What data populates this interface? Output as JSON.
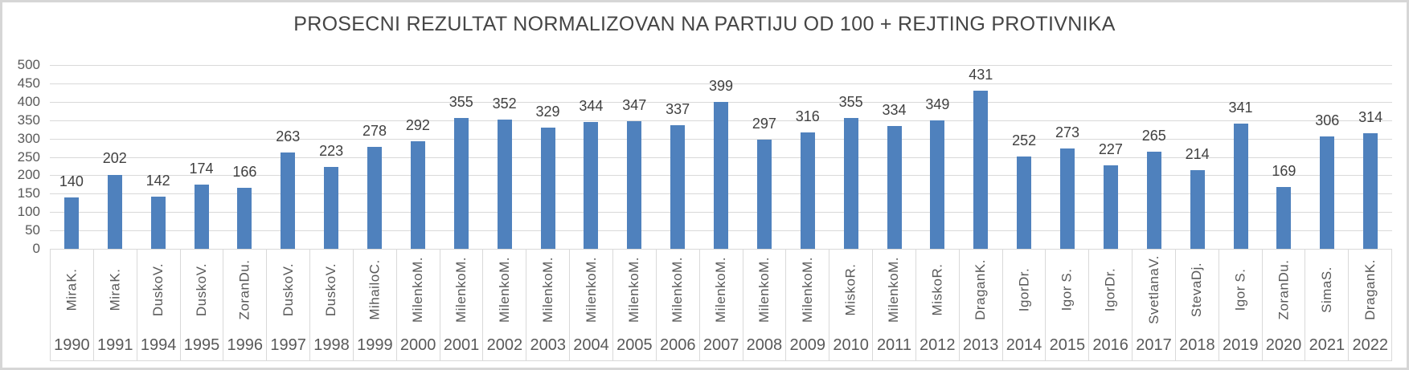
{
  "chart_data": {
    "type": "bar",
    "title": "PROSECNI REZULTAT NORMALIZOVAN NA PARTIJU OD 100 + REJTING PROTIVNIKA",
    "categories_years": [
      "1990",
      "1991",
      "1994",
      "1995",
      "1996",
      "1997",
      "1998",
      "1999",
      "2000",
      "2001",
      "2002",
      "2003",
      "2004",
      "2005",
      "2006",
      "2007",
      "2008",
      "2009",
      "2010",
      "2011",
      "2012",
      "2013",
      "2014",
      "2015",
      "2016",
      "2017",
      "2018",
      "2019",
      "2020",
      "2021",
      "2022"
    ],
    "categories_names": [
      "Mira K.",
      "Mira K.",
      "Dusko V.",
      "Dusko V.",
      "Zoran Du.",
      "Dusko V.",
      "Dusko V.",
      "Mihailo C.",
      "Milenko M.",
      "Milenko M.",
      "Milenko M.",
      "Milenko M.",
      "Milenko M.",
      "Milenko M.",
      "Milenko M.",
      "Milenko M.",
      "Milenko M.",
      "Milenko M.",
      "Misko R.",
      "Milenko M.",
      "Misko R.",
      "Dragan K.",
      "Igor Dr.",
      "Igor S.",
      "Igor Dr.",
      "Svetlana V.",
      "Steva Dj.",
      "Igor S.",
      "Zoran Du.",
      "Sima S.",
      "Dragan K."
    ],
    "values": [
      140,
      202,
      142,
      174,
      166,
      263,
      223,
      278,
      292,
      355,
      352,
      329,
      344,
      347,
      337,
      399,
      297,
      316,
      355,
      334,
      349,
      431,
      252,
      273,
      227,
      265,
      214,
      341,
      169,
      306,
      314
    ],
    "y_ticks": [
      500,
      450,
      400,
      350,
      300,
      250,
      200,
      150,
      100,
      50,
      0
    ],
    "ylim": [
      0,
      500
    ],
    "grid": true,
    "legend": "none",
    "bar_color": "#4f81bd",
    "gridline_color": "#d9d9d9",
    "axis_text_color": "#595959",
    "value_label_color": "#404040",
    "title_color": "#454545",
    "border_color": "#d6d6d6"
  }
}
